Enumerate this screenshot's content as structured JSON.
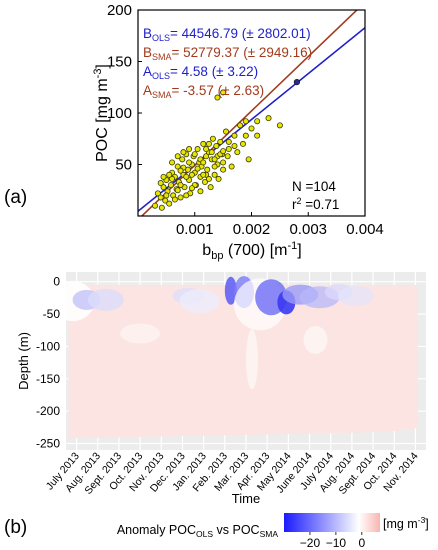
{
  "panel_labels": {
    "a": "(a)",
    "b": "(b)"
  },
  "chart_data": [
    {
      "type": "scatter",
      "xlabel": {
        "main": "b",
        "sub": "bp",
        "rest": " (700) [m",
        "sup": "-1",
        "end": "]"
      },
      "ylabel": {
        "main": "POC [mg m",
        "sup": "-3",
        "end": "]"
      },
      "xlim": [
        0,
        0.004
      ],
      "ylim": [
        0,
        200
      ],
      "xticks": [
        {
          "value": 0.001,
          "label": "0.001"
        },
        {
          "value": 0.002,
          "label": "0.002"
        },
        {
          "value": 0.003,
          "label": "0.003"
        },
        {
          "value": 0.004,
          "label": "0.004"
        }
      ],
      "yticks": [
        {
          "value": 50,
          "label": "50"
        },
        {
          "value": 100,
          "label": "100"
        },
        {
          "value": 150,
          "label": "150"
        },
        {
          "value": 200,
          "label": "200"
        }
      ],
      "point_fill": "#e6e600",
      "point_edge": "#3a3a00",
      "points": [
        [
          0.0003,
          10
        ],
        [
          0.00035,
          22
        ],
        [
          0.0004,
          18
        ],
        [
          0.00042,
          8
        ],
        [
          0.00045,
          28
        ],
        [
          0.00048,
          15
        ],
        [
          0.0005,
          35
        ],
        [
          0.00052,
          24
        ],
        [
          0.00055,
          12
        ],
        [
          0.00058,
          30
        ],
        [
          0.0006,
          42
        ],
        [
          0.00062,
          20
        ],
        [
          0.00065,
          38
        ],
        [
          0.00068,
          26
        ],
        [
          0.0007,
          48
        ],
        [
          0.00072,
          33
        ],
        [
          0.00075,
          18
        ],
        [
          0.00078,
          55
        ],
        [
          0.0008,
          40
        ],
        [
          0.00082,
          28
        ],
        [
          0.00085,
          60
        ],
        [
          0.00088,
          45
        ],
        [
          0.0009,
          35
        ],
        [
          0.00092,
          22
        ],
        [
          0.00095,
          50
        ],
        [
          0.00098,
          58
        ],
        [
          0.001,
          42
        ],
        [
          0.00102,
          30
        ],
        [
          0.00105,
          65
        ],
        [
          0.00108,
          52
        ],
        [
          0.0011,
          38
        ],
        [
          0.00112,
          48
        ],
        [
          0.00115,
          70
        ],
        [
          0.00118,
          33
        ],
        [
          0.0012,
          58
        ],
        [
          0.00122,
          45
        ],
        [
          0.00125,
          62
        ],
        [
          0.00128,
          28
        ],
        [
          0.0013,
          55
        ],
        [
          0.00132,
          75
        ],
        [
          0.00135,
          40
        ],
        [
          0.00138,
          68
        ],
        [
          0.0014,
          50
        ],
        [
          0.00142,
          36
        ],
        [
          0.00145,
          72
        ],
        [
          0.00148,
          60
        ],
        [
          0.0015,
          45
        ],
        [
          0.00155,
          82
        ],
        [
          0.00158,
          58
        ],
        [
          0.0016,
          65
        ],
        [
          0.00165,
          48
        ],
        [
          0.0017,
          78
        ],
        [
          0.00175,
          62
        ],
        [
          0.0018,
          88
        ],
        [
          0.00185,
          70
        ],
        [
          0.0019,
          92
        ],
        [
          0.00195,
          55
        ],
        [
          0.002,
          85
        ],
        [
          0.0021,
          92
        ],
        [
          0.0023,
          95
        ],
        [
          0.0025,
          88
        ],
        [
          0.0006,
          36
        ],
        [
          0.0007,
          25
        ],
        [
          0.0008,
          47
        ],
        [
          0.0009,
          52
        ],
        [
          0.001,
          30
        ],
        [
          0.0011,
          55
        ],
        [
          0.0012,
          40
        ],
        [
          0.0013,
          62
        ],
        [
          0.0014,
          58
        ],
        [
          0.0015,
          52
        ],
        [
          0.0016,
          72
        ],
        [
          0.00055,
          40
        ],
        [
          0.00065,
          16
        ],
        [
          0.00075,
          44
        ],
        [
          0.00085,
          38
        ],
        [
          0.00095,
          27
        ],
        [
          0.00105,
          46
        ],
        [
          0.00115,
          52
        ],
        [
          0.00125,
          36
        ],
        [
          0.00135,
          48
        ],
        [
          0.00145,
          60
        ],
        [
          0.0004,
          32
        ],
        [
          0.0005,
          20
        ],
        [
          0.0007,
          58
        ],
        [
          0.0008,
          62
        ],
        [
          0.0009,
          65
        ],
        [
          0.001,
          60
        ],
        [
          0.00115,
          40
        ],
        [
          0.00125,
          70
        ],
        [
          0.00135,
          55
        ],
        [
          0.0015,
          63
        ],
        [
          0.0017,
          68
        ],
        [
          0.0019,
          78
        ],
        [
          0.0021,
          78
        ],
        [
          0.0006,
          52
        ],
        [
          0.00075,
          30
        ],
        [
          0.00095,
          40
        ],
        [
          0.0011,
          24
        ],
        [
          0.0012,
          65
        ],
        [
          0.0014,
          115
        ],
        [
          0.0015,
          120
        ],
        [
          0.00045,
          38
        ],
        [
          0.00085,
          20
        ]
      ],
      "outlier": {
        "x": 0.0028,
        "y": 130
      },
      "lines": [
        {
          "id": "ols",
          "slope": 44546.79,
          "intercept": 4.58,
          "color": "#1f1fcc"
        },
        {
          "id": "sma",
          "slope": 52779.37,
          "intercept": -3.57,
          "color": "#a23b1e"
        }
      ],
      "annotations": [
        {
          "id": "b-ols",
          "color": "#1f1fcc",
          "main": "B",
          "sub": "OLS",
          "rest": "= 44546.79 (± 2802.01)"
        },
        {
          "id": "b-sma",
          "color": "#a23b1e",
          "main": "B",
          "sub": "SMA",
          "rest": "= 52779.37 (± 2949.16)"
        },
        {
          "id": "a-ols",
          "color": "#1f1fcc",
          "main": "A",
          "sub": "OLS",
          "rest": "= 4.58 (± 3.22)"
        },
        {
          "id": "a-sma",
          "color": "#a23b1e",
          "main": "A",
          "sub": "SMA",
          "rest": "= -3.57 (± 2.63)"
        }
      ],
      "stats": {
        "n": "N =104",
        "r2_main": "r",
        "r2_sup": "2",
        "r2_rest": " =0.71"
      }
    },
    {
      "type": "heatmap",
      "xlabel": "Time",
      "ylabel": "Depth (m)",
      "ylim": [
        -260,
        15
      ],
      "yticks": [
        {
          "value": 0,
          "label": "0"
        },
        {
          "value": -50,
          "label": "-50"
        },
        {
          "value": -100,
          "label": "-100"
        },
        {
          "value": -150,
          "label": "-150"
        },
        {
          "value": -200,
          "label": "-200"
        },
        {
          "value": -250,
          "label": "-250"
        }
      ],
      "months": [
        "July 2013",
        "Aug. 2013",
        "Sept. 2013",
        "Oct. 2013",
        "Nov. 2013",
        "Dec. 2013",
        "Jan. 2013",
        "Feb. 2013",
        "Mar. 2013",
        "Apr. 2013",
        "May 2014",
        "June 2014",
        "July 2014",
        "Aug. 2014",
        "Sept. 2014",
        "Oct. 2014",
        "Nov. 2014"
      ],
      "colorbar": {
        "title_main": "Anomaly POC",
        "title_sub1": "OLS",
        "title_mid": " vs POC",
        "title_sub2": "SMA",
        "unit_main": "[mg m",
        "unit_sup": "-3",
        "unit_end": "]",
        "ticks": [
          {
            "value": -20,
            "label": "−20"
          },
          {
            "value": -10,
            "label": "−10"
          },
          {
            "value": 0,
            "label": "0"
          }
        ],
        "range": [
          -30,
          7
        ],
        "colors": [
          "#1a1aff",
          "#ffffff",
          "#f9b5b0"
        ]
      }
    }
  ]
}
